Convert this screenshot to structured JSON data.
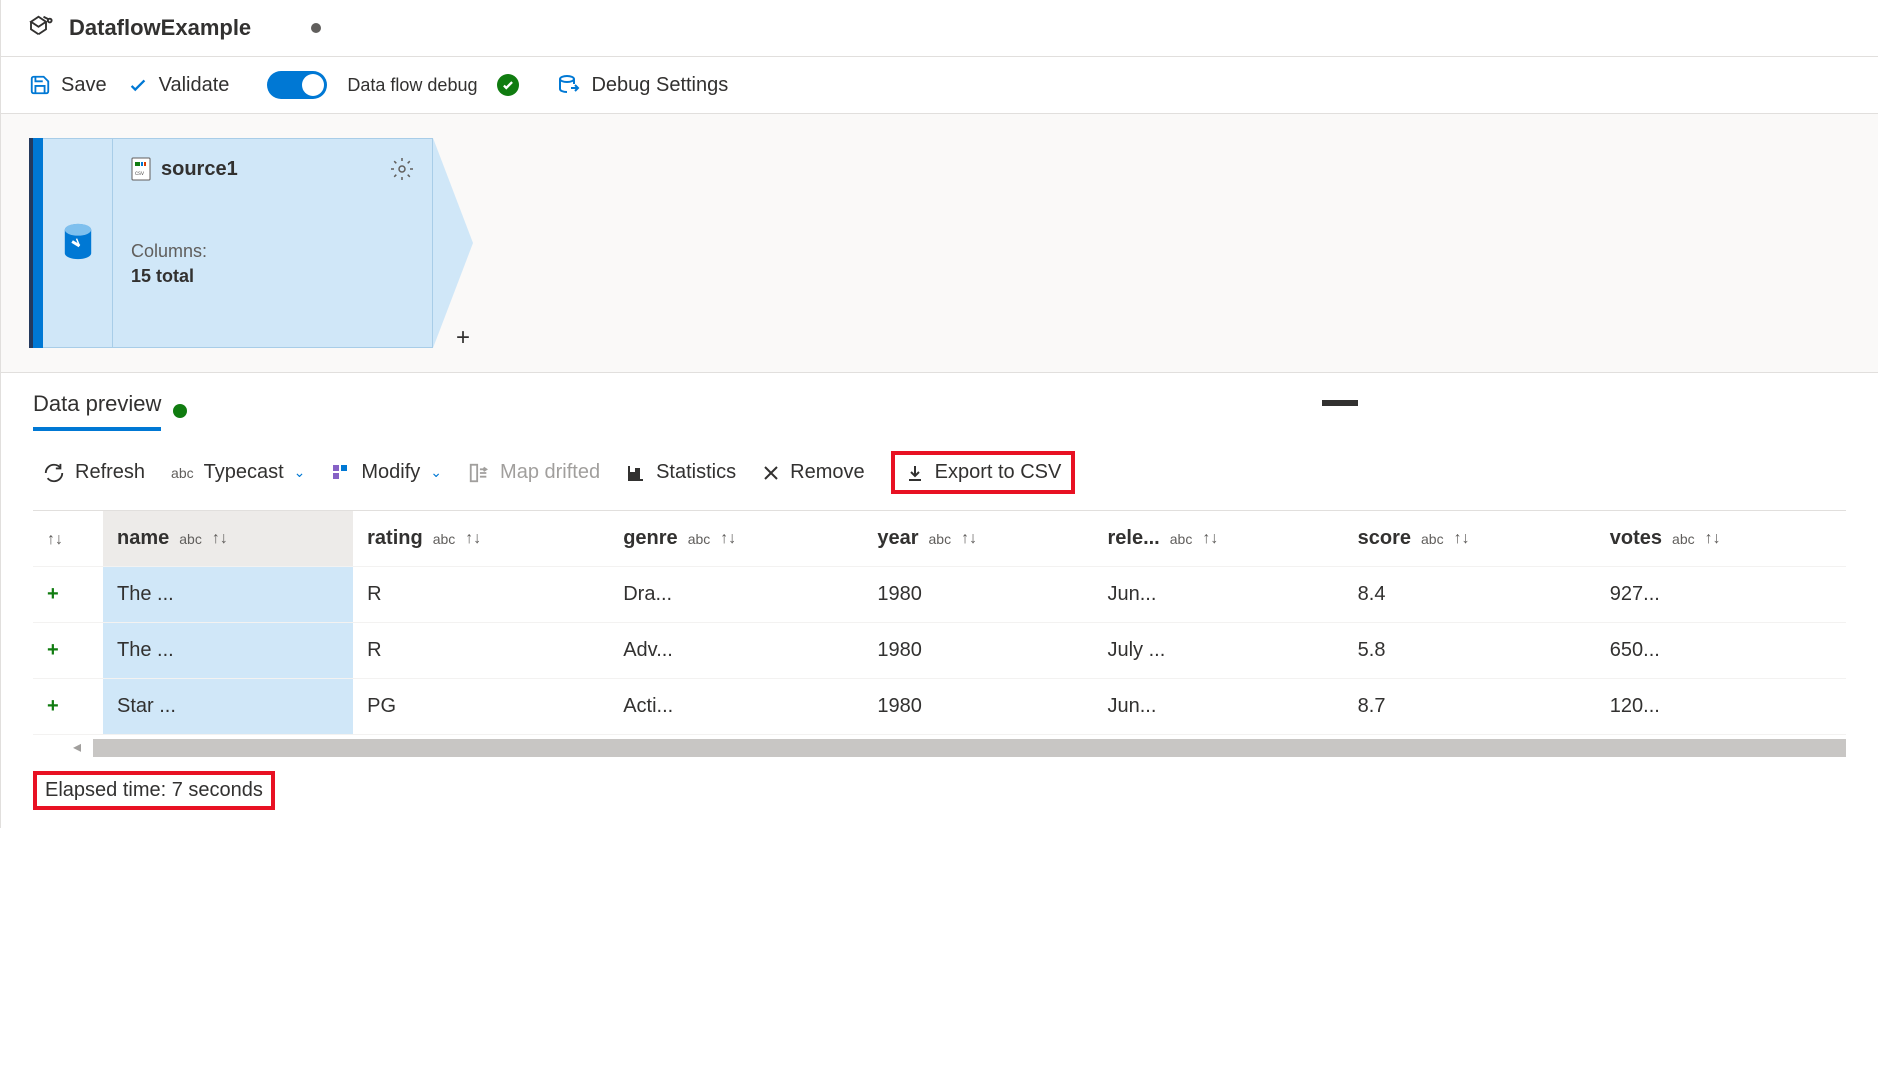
{
  "header": {
    "title": "DataflowExample"
  },
  "toolbar": {
    "save": "Save",
    "validate": "Validate",
    "debug_label": "Data flow debug",
    "debug_settings": "Debug Settings"
  },
  "node": {
    "name": "source1",
    "columns_label": "Columns:",
    "columns_count": "15 total"
  },
  "preview": {
    "tab": "Data preview",
    "refresh": "Refresh",
    "typecast": "Typecast",
    "modify": "Modify",
    "map_drifted": "Map drifted",
    "statistics": "Statistics",
    "remove": "Remove",
    "export": "Export to CSV",
    "elapsed": "Elapsed time: 7 seconds"
  },
  "table": {
    "type_label": "abc",
    "columns": [
      "name",
      "rating",
      "genre",
      "year",
      "rele...",
      "score",
      "votes"
    ],
    "rows": [
      [
        "The ...",
        "R",
        "Dra...",
        "1980",
        "Jun...",
        "8.4",
        "927..."
      ],
      [
        "The ...",
        "R",
        "Adv...",
        "1980",
        "July ...",
        "5.8",
        "650..."
      ],
      [
        "Star ...",
        "PG",
        "Acti...",
        "1980",
        "Jun...",
        "8.7",
        "120..."
      ]
    ]
  },
  "colors": {
    "primary": "#0078d4",
    "success": "#107c10",
    "highlight": "#e81123",
    "node_bg": "#d0e7f8",
    "canvas_bg": "#faf9f8"
  }
}
